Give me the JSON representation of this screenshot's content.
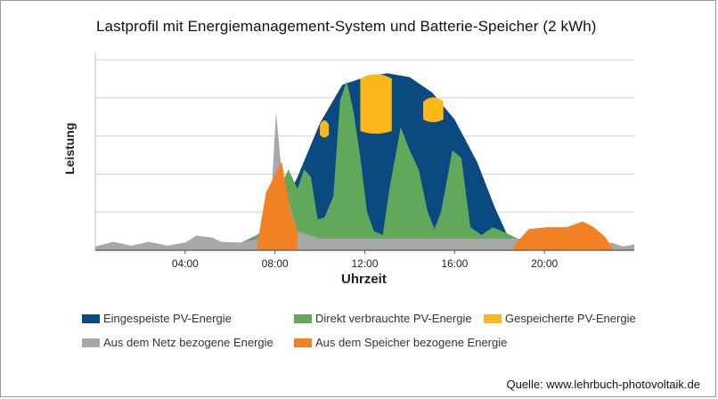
{
  "chart_data": {
    "type": "area",
    "title": "Lastprofil  mit Energiemanagement-System  und Batterie-Speicher (2 kWh)",
    "xlabel": "Uhrzeit",
    "ylabel": "Leistung",
    "x_ticks": [
      "04:00",
      "08:00",
      "12:00",
      "16:00",
      "20:00"
    ],
    "xlim": [
      0,
      24
    ],
    "grid": true,
    "legend_position": "bottom",
    "series": [
      {
        "name": "Eingespeiste PV-Energie",
        "color": "#0a4a80",
        "top": [
          [
            6.5,
            0
          ],
          [
            7.2,
            0.2
          ],
          [
            8,
            0.7
          ],
          [
            9,
            1.9
          ],
          [
            10,
            3.3
          ],
          [
            11,
            4.3
          ],
          [
            12,
            4.5
          ],
          [
            13,
            4.6
          ],
          [
            14,
            4.5
          ],
          [
            15,
            4.1
          ],
          [
            16,
            3.4
          ],
          [
            17,
            2.3
          ],
          [
            17.8,
            1.1
          ],
          [
            18.5,
            0.2
          ],
          [
            19,
            0
          ]
        ]
      },
      {
        "name": "Gespeicherte PV-Energie",
        "color": "#fbb81a",
        "regions": [
          {
            "x_start": 10.0,
            "x_end": 10.4,
            "top": 3.4,
            "bottom": 3.0
          },
          {
            "x_start": 11.8,
            "x_end": 13.2,
            "top": 4.6,
            "bottom": 3.1
          },
          {
            "x_start": 14.6,
            "x_end": 15.5,
            "top": 4.0,
            "bottom": 3.4
          }
        ]
      },
      {
        "name": "Direkt verbrauchte PV-Energie",
        "color": "#62a85a",
        "top": [
          [
            5.5,
            0.05
          ],
          [
            6.5,
            0.2
          ],
          [
            7.2,
            0.4
          ],
          [
            7.8,
            0.7
          ],
          [
            8.2,
            1.6
          ],
          [
            8.6,
            2.1
          ],
          [
            9,
            1.6
          ],
          [
            9.3,
            2.1
          ],
          [
            9.6,
            1.9
          ],
          [
            9.9,
            0.8
          ],
          [
            10.2,
            0.85
          ],
          [
            10.6,
            1.4
          ],
          [
            10.9,
            3.9
          ],
          [
            11.2,
            4.4
          ],
          [
            11.5,
            3.6
          ],
          [
            11.8,
            2.4
          ],
          [
            12.1,
            1.0
          ],
          [
            12.4,
            0.5
          ],
          [
            12.8,
            0.4
          ],
          [
            13.1,
            1.6
          ],
          [
            13.6,
            3.2
          ],
          [
            14.0,
            2.6
          ],
          [
            14.4,
            2.1
          ],
          [
            14.8,
            1.0
          ],
          [
            15.1,
            0.55
          ],
          [
            15.4,
            1.0
          ],
          [
            15.9,
            2.6
          ],
          [
            16.3,
            2.4
          ],
          [
            16.7,
            0.6
          ],
          [
            17.2,
            0.4
          ],
          [
            17.7,
            0.6
          ],
          [
            18.3,
            0.45
          ],
          [
            19,
            0.25
          ],
          [
            20,
            0.05
          ],
          [
            20.5,
            0
          ]
        ]
      },
      {
        "name": "Aus dem Netz bezogene Energie",
        "color": "#a8a8aa",
        "top": [
          [
            0,
            0.1
          ],
          [
            0.8,
            0.22
          ],
          [
            1.6,
            0.12
          ],
          [
            2.4,
            0.22
          ],
          [
            3.2,
            0.12
          ],
          [
            4.0,
            0.2
          ],
          [
            4.5,
            0.38
          ],
          [
            5.2,
            0.33
          ],
          [
            5.6,
            0.22
          ],
          [
            6.5,
            0.2
          ],
          [
            7.3,
            0.3
          ],
          [
            7.8,
            1.0
          ],
          [
            8.05,
            3.6
          ],
          [
            8.3,
            2.0
          ],
          [
            8.6,
            1.3
          ],
          [
            9,
            0.5
          ],
          [
            10,
            0.3
          ],
          [
            19,
            0.3
          ],
          [
            22,
            0.1
          ],
          [
            23,
            0.2
          ],
          [
            23.5,
            0.1
          ],
          [
            24,
            0.15
          ]
        ]
      },
      {
        "name": "Aus dem Speicher bezogene Energie",
        "color": "#f28123",
        "top": [
          [
            7.2,
            0.1
          ],
          [
            7.6,
            1.5
          ],
          [
            8.3,
            2.3
          ],
          [
            8.7,
            1.0
          ],
          [
            9,
            0.5
          ],
          [
            18.6,
            0.1
          ],
          [
            19.3,
            0.55
          ],
          [
            20.1,
            0.6
          ],
          [
            21,
            0.6
          ],
          [
            21.7,
            0.75
          ],
          [
            22.2,
            0.6
          ],
          [
            22.7,
            0.35
          ],
          [
            23.1,
            0
          ]
        ]
      }
    ]
  },
  "legend": [
    {
      "label": "Eingespeiste PV-Energie",
      "color": "#0a4a80"
    },
    {
      "label": "Direkt verbrauchte PV-Energie",
      "color": "#62a85a"
    },
    {
      "label": "Gespeicherte PV-Energie",
      "color": "#fbb81a"
    },
    {
      "label": "Aus dem Netz bezogene Energie",
      "color": "#a8a8aa"
    },
    {
      "label": "Aus dem Speicher bezogene Energie",
      "color": "#f28123"
    }
  ],
  "source": "Quelle: www.lehrbuch-photovoltaik.de"
}
